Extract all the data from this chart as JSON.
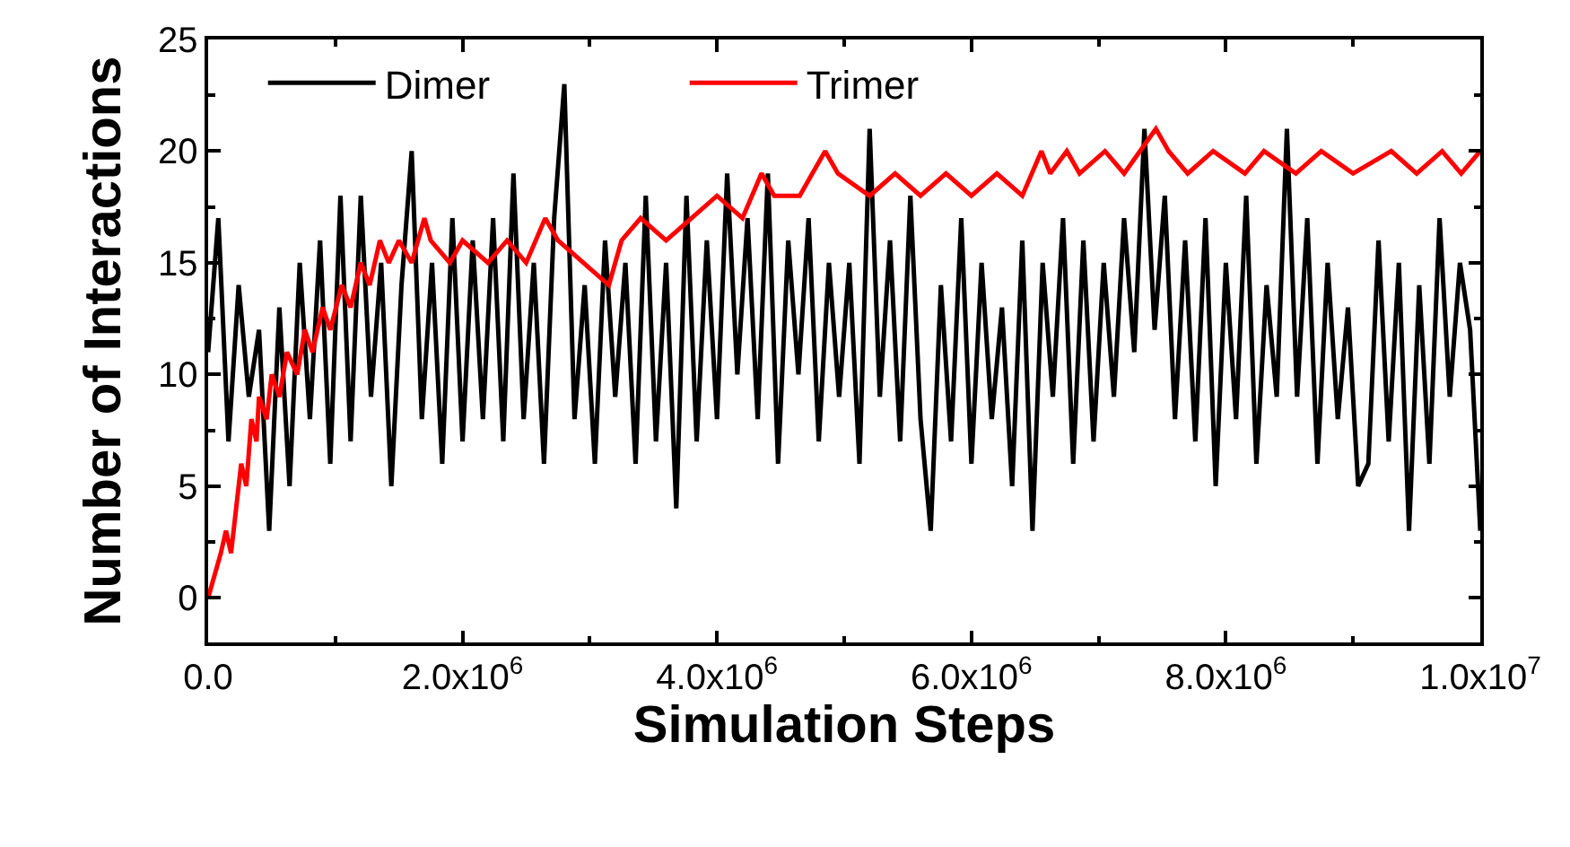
{
  "chart_data": {
    "type": "line",
    "xlabel": "Simulation Steps",
    "ylabel": "Number of Interactions",
    "xlim": [
      0,
      10000000
    ],
    "ylim": [
      -2,
      25
    ],
    "xticks": [
      {
        "value": 0,
        "label": "0.0"
      },
      {
        "value": 2000000,
        "label": "2.0x10$^{6}$"
      },
      {
        "value": 4000000,
        "label": "4.0x10$^{6}$"
      },
      {
        "value": 6000000,
        "label": "6.0x10$^{6}$"
      },
      {
        "value": 8000000,
        "label": "8.0x10$^{6}$"
      },
      {
        "value": 10000000,
        "label": "1.0x10$^{7}$"
      }
    ],
    "yticks": [
      0,
      5,
      10,
      15,
      20,
      25
    ],
    "legend": "top left",
    "marker": "none",
    "line_style": "solid",
    "series": [
      {
        "name": "Dimer",
        "color": "#000000",
        "x": [
          0,
          80000,
          160000,
          240000,
          320000,
          400000,
          480000,
          560000,
          640000,
          720000,
          800000,
          880000,
          960000,
          1040000,
          1120000,
          1200000,
          1280000,
          1360000,
          1440000,
          1520000,
          1600000,
          1680000,
          1760000,
          1840000,
          1920000,
          2000000,
          2080000,
          2160000,
          2240000,
          2320000,
          2400000,
          2480000,
          2560000,
          2640000,
          2720000,
          2800000,
          2880000,
          2960000,
          3040000,
          3120000,
          3200000,
          3280000,
          3360000,
          3440000,
          3520000,
          3600000,
          3680000,
          3760000,
          3840000,
          3920000,
          4000000,
          4080000,
          4160000,
          4240000,
          4320000,
          4400000,
          4480000,
          4560000,
          4640000,
          4720000,
          4800000,
          4880000,
          4960000,
          5040000,
          5120000,
          5200000,
          5280000,
          5360000,
          5440000,
          5520000,
          5600000,
          5680000,
          5760000,
          5840000,
          5920000,
          6000000,
          6080000,
          6160000,
          6240000,
          6320000,
          6400000,
          6480000,
          6560000,
          6640000,
          6720000,
          6800000,
          6880000,
          6960000,
          7040000,
          7120000,
          7200000,
          7280000,
          7360000,
          7440000,
          7520000,
          7600000,
          7680000,
          7760000,
          7840000,
          7920000,
          8000000,
          8080000,
          8160000,
          8240000,
          8320000,
          8400000,
          8480000,
          8560000,
          8640000,
          8720000,
          8800000,
          8880000,
          8960000,
          9040000,
          9120000,
          9200000,
          9280000,
          9360000,
          9440000,
          9520000,
          9600000,
          9680000,
          9760000,
          9840000,
          9920000,
          10000000
        ],
        "values": [
          11,
          17,
          7,
          14,
          9,
          12,
          3,
          13,
          5,
          15,
          8,
          16,
          6,
          18,
          7,
          18,
          9,
          15,
          5,
          14,
          20,
          8,
          15,
          6,
          17,
          7,
          16,
          8,
          17,
          7,
          19,
          8,
          15,
          6,
          17,
          23,
          8,
          14,
          6,
          16,
          9,
          15,
          6,
          18,
          7,
          15,
          4,
          18,
          7,
          16,
          8,
          19,
          10,
          17,
          8,
          19,
          6,
          16,
          10,
          17,
          7,
          15,
          9,
          15,
          6,
          21,
          9,
          16,
          7,
          18,
          8,
          3,
          14,
          7,
          17,
          6,
          15,
          8,
          13,
          5,
          16,
          3,
          15,
          9,
          17,
          6,
          16,
          7,
          15,
          9,
          17,
          11,
          21,
          12,
          18,
          8,
          16,
          7,
          17,
          5,
          15,
          8,
          18,
          6,
          14,
          9,
          21,
          9,
          17,
          6,
          15,
          8,
          13,
          5,
          6,
          16,
          7,
          15,
          3,
          14,
          6,
          17,
          9,
          15,
          12,
          3
        ]
      },
      {
        "name": "Trimer",
        "color": "#ff0000",
        "x": [
          0,
          50000,
          100000,
          140000,
          180000,
          220000,
          260000,
          300000,
          340000,
          380000,
          400000,
          460000,
          500000,
          560000,
          620000,
          700000,
          760000,
          820000,
          900000,
          960000,
          1050000,
          1120000,
          1200000,
          1270000,
          1350000,
          1420000,
          1500000,
          1600000,
          1700000,
          1750000,
          1900000,
          2000000,
          2200000,
          2350000,
          2500000,
          2650000,
          2750000,
          2950000,
          3150000,
          3250000,
          3400000,
          3600000,
          3800000,
          4000000,
          4200000,
          4350000,
          4450000,
          4650000,
          4750000,
          4850000,
          4950000,
          5200000,
          5400000,
          5600000,
          5800000,
          6000000,
          6200000,
          6400000,
          6550000,
          6620000,
          6750000,
          6850000,
          7050000,
          7200000,
          7450000,
          7550000,
          7700000,
          7900000,
          8150000,
          8300000,
          8550000,
          8750000,
          9000000,
          9300000,
          9500000,
          9700000,
          9850000,
          10000000
        ],
        "values": [
          0,
          1,
          2,
          3,
          2,
          4,
          6,
          5,
          8,
          7,
          9,
          8,
          10,
          9,
          11,
          10,
          12,
          11,
          13,
          12,
          14,
          13,
          15,
          14,
          16,
          15,
          16,
          15,
          17,
          16,
          15,
          16,
          15,
          16,
          15,
          17,
          16,
          15,
          14,
          16,
          17,
          16,
          17,
          18,
          17,
          19,
          18,
          18,
          19,
          20,
          19,
          18,
          19,
          18,
          19,
          18,
          19,
          18,
          20,
          19,
          20,
          19,
          20,
          19,
          21,
          20,
          19,
          20,
          19,
          20,
          19,
          20,
          19,
          20,
          19,
          20,
          19,
          20
        ]
      }
    ]
  }
}
